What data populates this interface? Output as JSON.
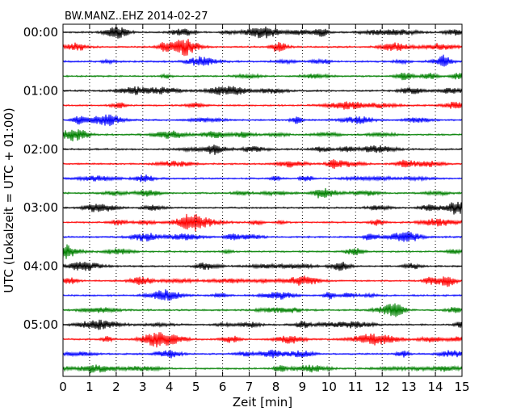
{
  "chart_data": {
    "type": "line",
    "subtype": "dayplot-seismogram",
    "title": "BW.MANZ..EHZ 2014-02-27",
    "xlabel": "Zeit  [min]",
    "ylabel": "UTC (Lokalzeit = UTC + 01:00)",
    "xlim": [
      0,
      15
    ],
    "x_ticks": [
      "0",
      "1",
      "2",
      "3",
      "4",
      "5",
      "6",
      "7",
      "8",
      "9",
      "10",
      "11",
      "12",
      "13",
      "14",
      "15"
    ],
    "y_tick_labels": [
      "00:00",
      "01:00",
      "02:00",
      "03:00",
      "04:00",
      "05:00"
    ],
    "traces_per_hour": 4,
    "trace_count": 24,
    "trace_colors": [
      "#000000",
      "#ff0000",
      "#0000ff",
      "#008000"
    ],
    "grid": "vertical-dotted",
    "legend": "none"
  }
}
